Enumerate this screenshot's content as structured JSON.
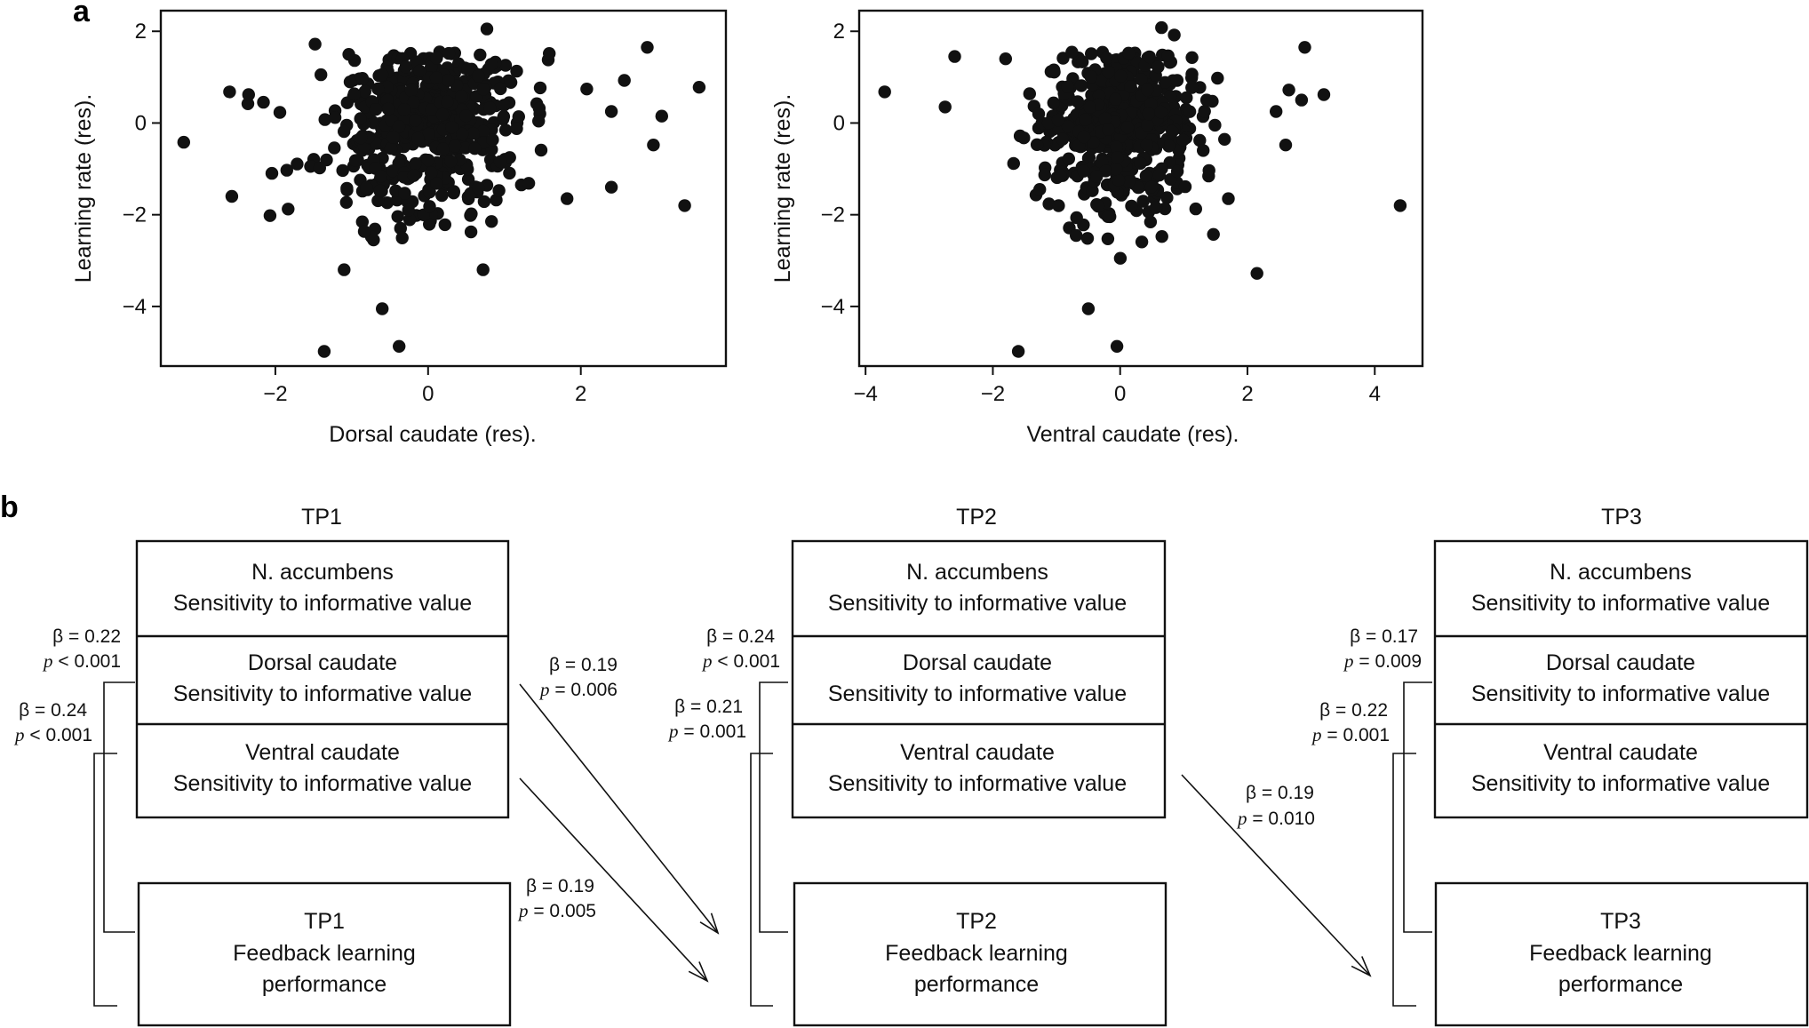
{
  "panel_labels": {
    "a": "a",
    "b": "b"
  },
  "chart_data": [
    {
      "type": "scatter",
      "title": "",
      "xlabel": "Dorsal caudate (res).",
      "ylabel": "Learning rate (res).",
      "xlim": [
        -3.5,
        3.9
      ],
      "ylim": [
        -5.3,
        2.45
      ],
      "xticks": [
        -2,
        0,
        2
      ],
      "xtick_labels": [
        "−2",
        "0",
        "2"
      ],
      "yticks": [
        -4,
        -2,
        0,
        2
      ],
      "ytick_labels": [
        "−4",
        "−2",
        "0",
        "2"
      ],
      "grid": false,
      "n_points_approx": 560,
      "outliers": [
        {
          "x": -3.2,
          "y": -0.42
        },
        {
          "x": -2.6,
          "y": 0.68
        },
        {
          "x": -2.57,
          "y": -1.6
        },
        {
          "x": -2.36,
          "y": 0.42
        },
        {
          "x": -2.35,
          "y": 0.62
        },
        {
          "x": -2.07,
          "y": -2.02
        },
        {
          "x": -1.85,
          "y": -1.03
        },
        {
          "x": -1.48,
          "y": 1.72
        },
        {
          "x": -1.36,
          "y": -4.98
        },
        {
          "x": -1.1,
          "y": -3.2
        },
        {
          "x": -0.6,
          "y": -4.05
        },
        {
          "x": -0.38,
          "y": -4.87
        },
        {
          "x": 0.72,
          "y": -3.2
        },
        {
          "x": 0.77,
          "y": 2.05
        },
        {
          "x": 1.82,
          "y": -1.65
        },
        {
          "x": 2.4,
          "y": -1.4
        },
        {
          "x": 2.4,
          "y": 0.25
        },
        {
          "x": 2.57,
          "y": 0.93
        },
        {
          "x": 2.87,
          "y": 1.65
        },
        {
          "x": 2.95,
          "y": -0.48
        },
        {
          "x": 3.06,
          "y": 0.15
        },
        {
          "x": 3.36,
          "y": -1.8
        },
        {
          "x": 3.55,
          "y": 0.78
        }
      ]
    },
    {
      "type": "scatter",
      "title": "",
      "xlabel": "Ventral caudate (res).",
      "ylabel": "Learning rate (res).",
      "xlim": [
        -4.1,
        4.75
      ],
      "ylim": [
        -5.3,
        2.45
      ],
      "xticks": [
        -4,
        -2,
        0,
        2,
        4
      ],
      "xtick_labels": [
        "−4",
        "−2",
        "0",
        "2",
        "4"
      ],
      "yticks": [
        -4,
        -2,
        0,
        2
      ],
      "ytick_labels": [
        "−4",
        "−2",
        "0",
        "2"
      ],
      "grid": false,
      "n_points_approx": 560,
      "outliers": [
        {
          "x": -3.7,
          "y": 0.68
        },
        {
          "x": -2.75,
          "y": 0.35
        },
        {
          "x": -2.6,
          "y": 1.45
        },
        {
          "x": -1.6,
          "y": -4.98
        },
        {
          "x": -1.8,
          "y": 1.4
        },
        {
          "x": -0.5,
          "y": -4.05
        },
        {
          "x": -0.05,
          "y": -4.87
        },
        {
          "x": 0.65,
          "y": 2.08
        },
        {
          "x": 0.85,
          "y": 1.92
        },
        {
          "x": 1.7,
          "y": -1.65
        },
        {
          "x": 2.15,
          "y": -3.28
        },
        {
          "x": 2.45,
          "y": 0.25
        },
        {
          "x": 2.6,
          "y": -0.48
        },
        {
          "x": 2.9,
          "y": 1.65
        },
        {
          "x": 3.2,
          "y": 0.62
        },
        {
          "x": 4.4,
          "y": -1.8
        },
        {
          "x": 2.65,
          "y": 0.72
        },
        {
          "x": 2.85,
          "y": 0.5
        }
      ]
    }
  ],
  "diagram": {
    "timepoints": [
      {
        "label": "TP1",
        "brain_boxes": [
          {
            "line1": "N. accumbens",
            "line2": "Sensitivity to informative value"
          },
          {
            "line1": "Dorsal caudate",
            "line2": "Sensitivity to informative value"
          },
          {
            "line1": "Ventral caudate",
            "line2": "Sensitivity to informative value"
          }
        ],
        "performance_box": {
          "line1": "TP1",
          "line2": "Feedback learning",
          "line3": "performance"
        },
        "bracket_stats": [
          {
            "beta": "β = 0.22",
            "p_label": "p",
            "p_rest": " < 0.001"
          },
          {
            "beta": "β = 0.24",
            "p_label": "p",
            "p_rest": " < 0.001"
          }
        ]
      },
      {
        "label": "TP2",
        "brain_boxes": [
          {
            "line1": "N. accumbens",
            "line2": "Sensitivity to informative value"
          },
          {
            "line1": "Dorsal caudate",
            "line2": "Sensitivity to informative value"
          },
          {
            "line1": "Ventral caudate",
            "line2": "Sensitivity to informative value"
          }
        ],
        "performance_box": {
          "line1": "TP2",
          "line2": "Feedback learning",
          "line3": "performance"
        },
        "bracket_stats": [
          {
            "beta": "β = 0.24",
            "p_label": "p",
            "p_rest": " < 0.001"
          },
          {
            "beta": "β = 0.21",
            "p_label": "p",
            "p_rest": " = 0.001"
          }
        ]
      },
      {
        "label": "TP3",
        "brain_boxes": [
          {
            "line1": "N. accumbens",
            "line2": "Sensitivity to informative value"
          },
          {
            "line1": "Dorsal caudate",
            "line2": "Sensitivity to informative value"
          },
          {
            "line1": "Ventral caudate",
            "line2": "Sensitivity to informative value"
          }
        ],
        "performance_box": {
          "line1": "TP3",
          "line2": "Feedback learning",
          "line3": "performance"
        },
        "bracket_stats": [
          {
            "beta": "β = 0.17",
            "p_label": "p",
            "p_rest": " = 0.009"
          },
          {
            "beta": "β = 0.22",
            "p_label": "p",
            "p_rest": " = 0.001"
          }
        ]
      }
    ],
    "cross_paths": [
      {
        "from": "TP1 Dorsal caudate",
        "to": "TP2 performance",
        "beta": "β = 0.19",
        "p_label": "p",
        "p_rest": " = 0.006"
      },
      {
        "from": "TP1 Ventral caudate",
        "to": "TP2 performance",
        "beta": "β = 0.19",
        "p_label": "p",
        "p_rest": " = 0.005"
      },
      {
        "from": "TP2 Ventral caudate",
        "to": "TP3 performance",
        "beta": "β = 0.19",
        "p_label": "p",
        "p_rest": " = 0.010"
      }
    ]
  }
}
